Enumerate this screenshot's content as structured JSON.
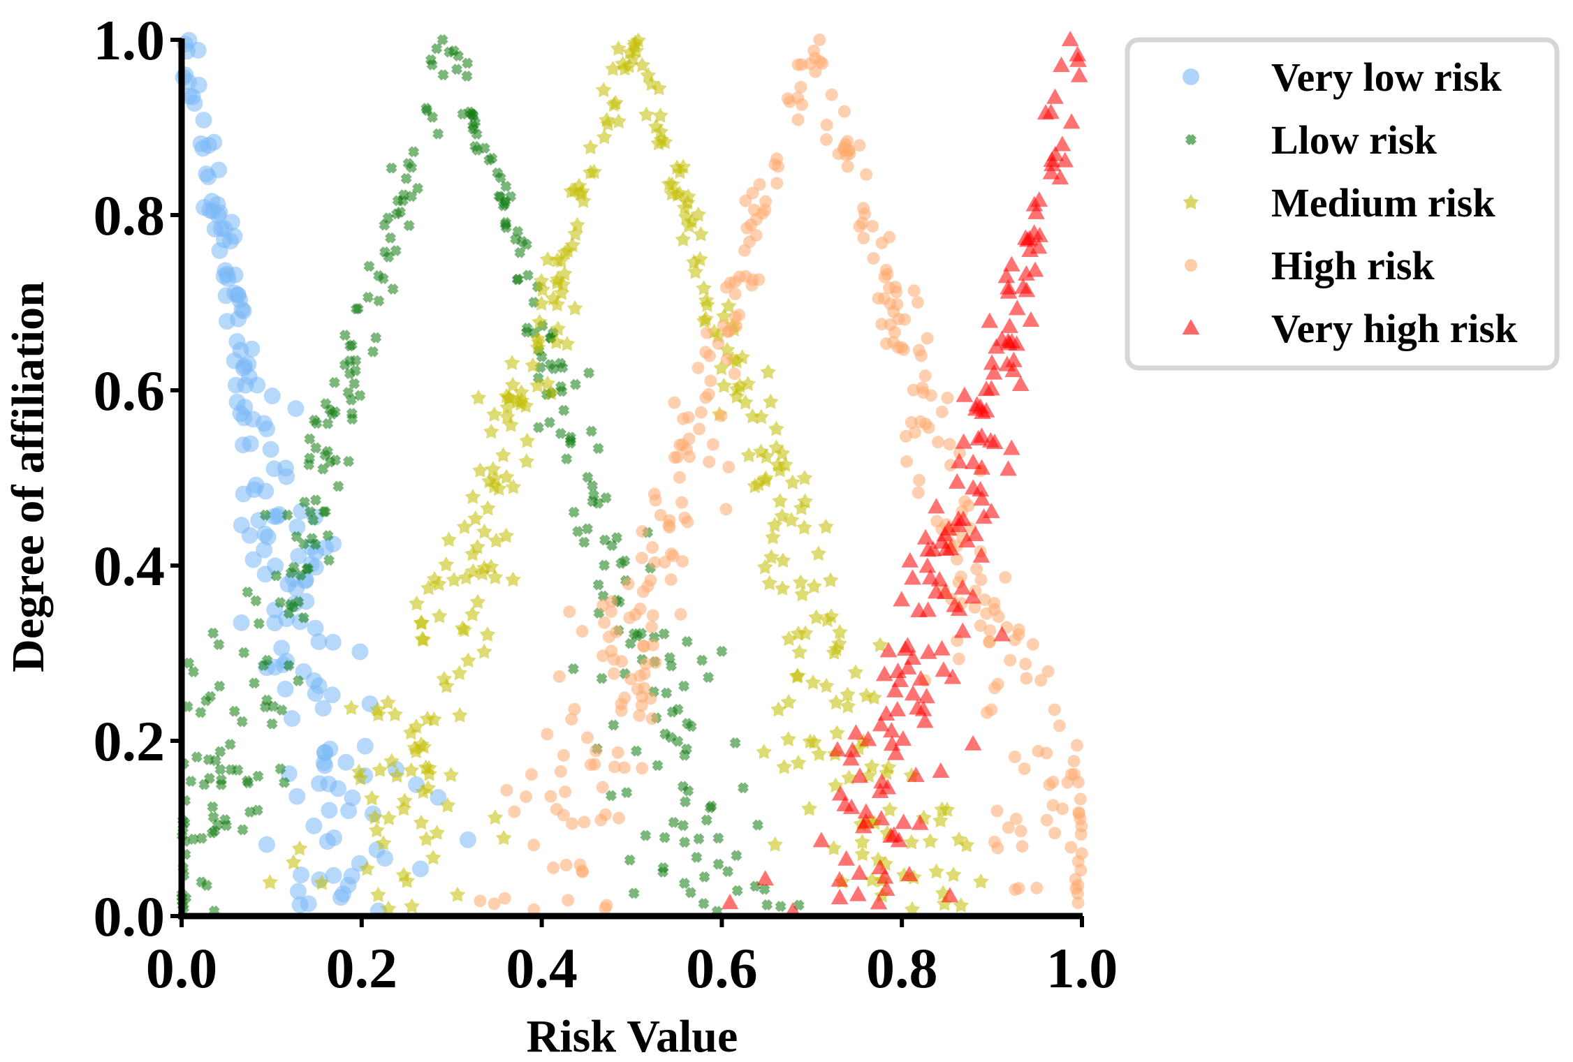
{
  "chart_data": {
    "type": "scatter",
    "title": "",
    "xlabel": "Risk Value",
    "ylabel": "Degree of affiliation",
    "xlim": [
      0.0,
      1.0
    ],
    "ylim": [
      0.0,
      1.0
    ],
    "xticks": [
      "0.0",
      "0.2",
      "0.4",
      "0.6",
      "0.8",
      "1.0"
    ],
    "yticks": [
      "0.0",
      "0.2",
      "0.4",
      "0.6",
      "0.8",
      "1.0"
    ],
    "grid": false,
    "legend_position": "outside-top-right",
    "series": [
      {
        "name": "Very low risk",
        "marker": "circle",
        "color": "#7ab8f5",
        "shape": "decreasing",
        "peak": 0.0,
        "half_width": 0.2,
        "points_per_side": 170
      },
      {
        "name": "Llow risk",
        "marker": "x",
        "color": "#0e7a0e",
        "shape": "triangular",
        "peak": 0.3,
        "half_width": 0.3,
        "points_per_side": 170
      },
      {
        "name": "Medium risk",
        "marker": "pentagon",
        "color": "#c2bd00",
        "shape": "triangular",
        "peak": 0.5,
        "half_width": 0.3,
        "points_per_side": 170
      },
      {
        "name": "High risk",
        "marker": "circle-small",
        "color": "#ffaa6e",
        "shape": "triangular",
        "peak": 0.7,
        "half_width": 0.3,
        "points_per_side": 170
      },
      {
        "name": "Very high risk",
        "marker": "triangle",
        "color": "#ff0000",
        "shape": "increasing",
        "peak": 1.0,
        "half_width": 0.25,
        "points_per_side": 170
      }
    ]
  }
}
